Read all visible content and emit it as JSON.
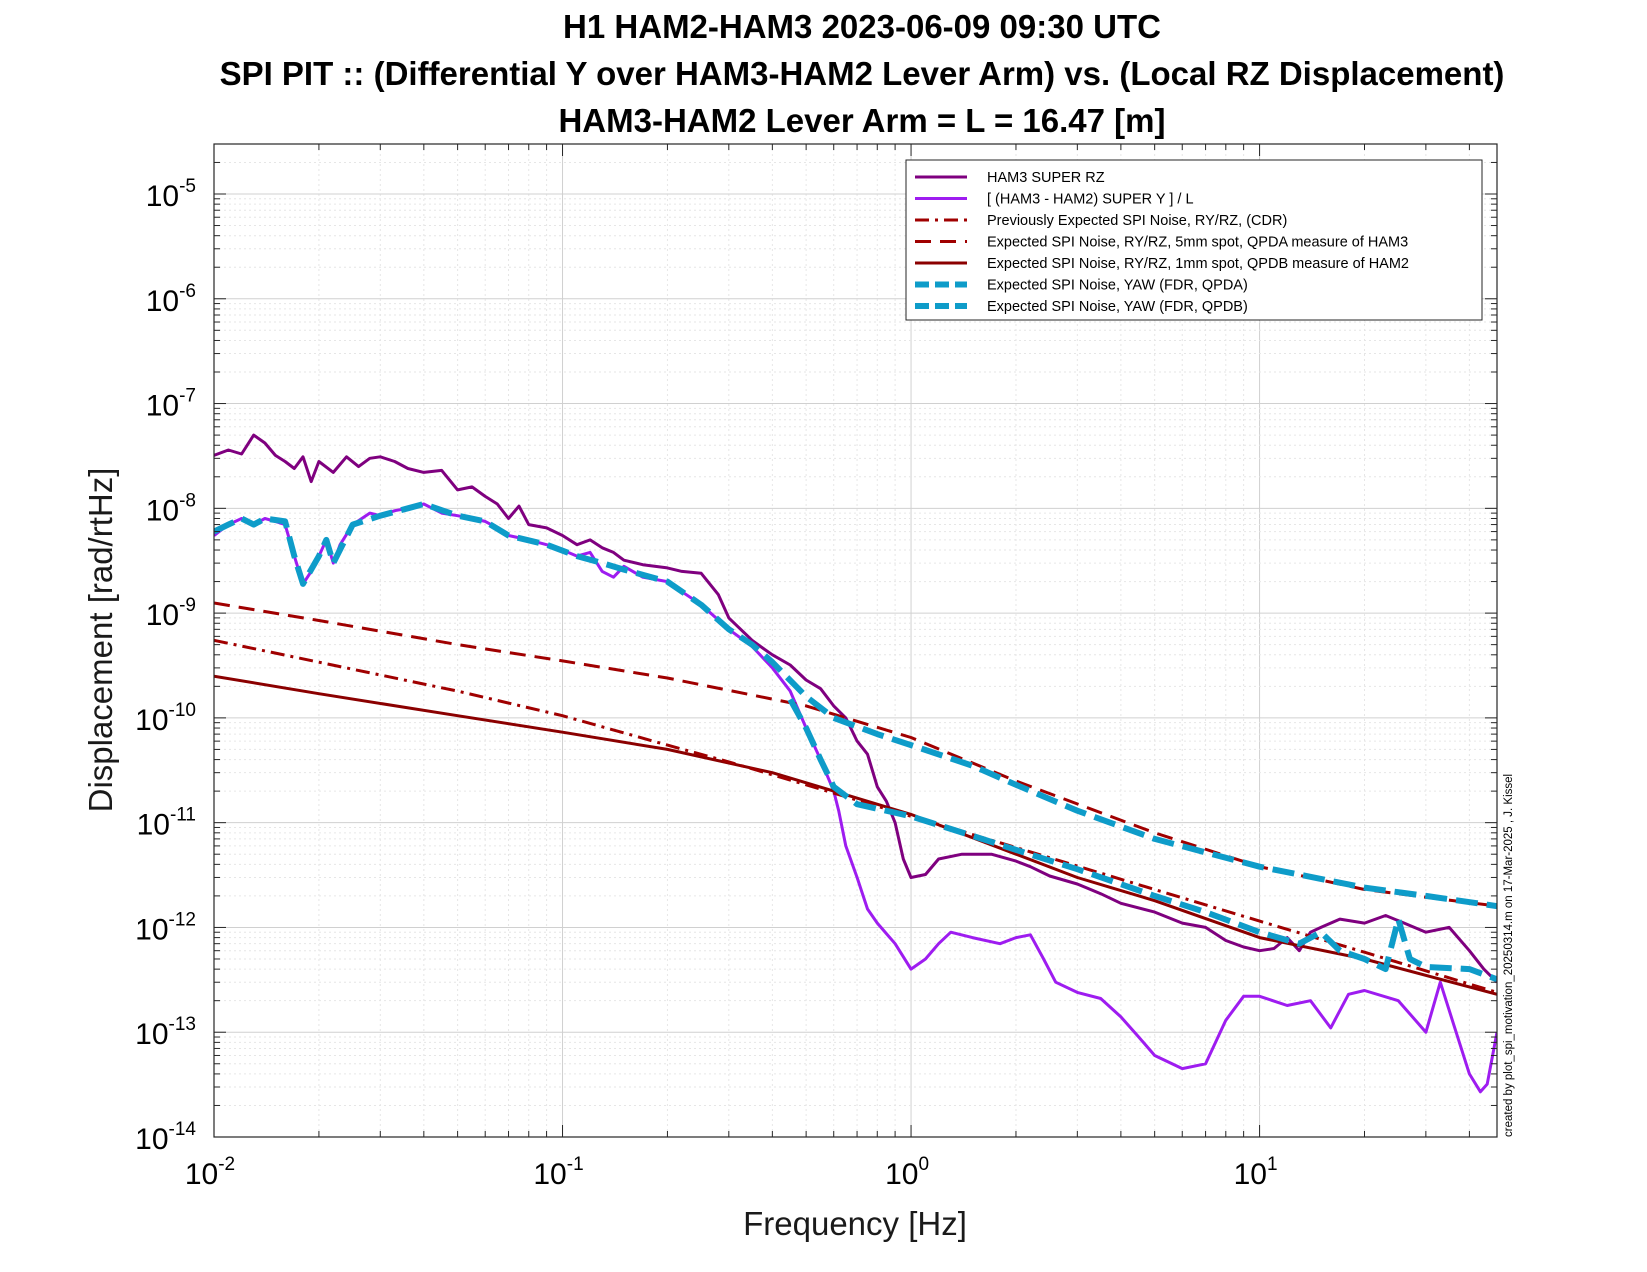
{
  "chart_data": {
    "type": "line",
    "title_lines": [
      "H1 HAM2-HAM3 2023-06-09 09:30 UTC",
      "SPI PIT :: (Differential Y over HAM3-HAM2 Lever Arm) vs. (Local RZ Displacement)",
      "HAM3-HAM2 Lever Arm = L = 16.47 [m]"
    ],
    "xlabel": "Frequency [Hz]",
    "ylabel": "Displacement [rad/rtHz]",
    "xscale": "log",
    "yscale": "log",
    "xlim": [
      0.01,
      48
    ],
    "ylim": [
      1e-14,
      3e-05
    ],
    "x_ticks": [
      {
        "value": 0.01,
        "base": "10",
        "exp": "-2"
      },
      {
        "value": 0.1,
        "base": "10",
        "exp": "-1"
      },
      {
        "value": 1,
        "base": "10",
        "exp": "0"
      },
      {
        "value": 10,
        "base": "10",
        "exp": "1"
      }
    ],
    "y_ticks": [
      {
        "value": 1e-14,
        "base": "10",
        "exp": "-14"
      },
      {
        "value": 1e-13,
        "base": "10",
        "exp": "-13"
      },
      {
        "value": 1e-12,
        "base": "10",
        "exp": "-12"
      },
      {
        "value": 1e-11,
        "base": "10",
        "exp": "-11"
      },
      {
        "value": 1e-10,
        "base": "10",
        "exp": "-10"
      },
      {
        "value": 1e-09,
        "base": "10",
        "exp": "-9"
      },
      {
        "value": 1e-08,
        "base": "10",
        "exp": "-8"
      },
      {
        "value": 1e-07,
        "base": "10",
        "exp": "-7"
      },
      {
        "value": 1e-06,
        "base": "10",
        "exp": "-6"
      },
      {
        "value": 1e-05,
        "base": "10",
        "exp": "-5"
      }
    ],
    "grid": true,
    "minor_grid": true,
    "legend_position": "top-right",
    "annotation": "created by plot_spi_motivation_20250314.m on 17-Mar-2025 , J. Kissel",
    "series": [
      {
        "name": "HAM3 SUPER RZ",
        "color": "#7f007f",
        "style": "solid",
        "width": 3,
        "points": [
          [
            0.01,
            3.2e-08
          ],
          [
            0.011,
            3.6e-08
          ],
          [
            0.012,
            3.3e-08
          ],
          [
            0.013,
            5e-08
          ],
          [
            0.014,
            4.2e-08
          ],
          [
            0.015,
            3.2e-08
          ],
          [
            0.016,
            2.8e-08
          ],
          [
            0.017,
            2.4e-08
          ],
          [
            0.018,
            3.1e-08
          ],
          [
            0.019,
            1.8e-08
          ],
          [
            0.02,
            2.8e-08
          ],
          [
            0.022,
            2.2e-08
          ],
          [
            0.024,
            3.1e-08
          ],
          [
            0.026,
            2.5e-08
          ],
          [
            0.028,
            3e-08
          ],
          [
            0.03,
            3.1e-08
          ],
          [
            0.033,
            2.8e-08
          ],
          [
            0.036,
            2.4e-08
          ],
          [
            0.04,
            2.2e-08
          ],
          [
            0.045,
            2.3e-08
          ],
          [
            0.05,
            1.5e-08
          ],
          [
            0.055,
            1.6e-08
          ],
          [
            0.06,
            1.3e-08
          ],
          [
            0.065,
            1.1e-08
          ],
          [
            0.07,
            8e-09
          ],
          [
            0.075,
            1.05e-08
          ],
          [
            0.08,
            7e-09
          ],
          [
            0.09,
            6.5e-09
          ],
          [
            0.1,
            5.5e-09
          ],
          [
            0.11,
            4.5e-09
          ],
          [
            0.12,
            5e-09
          ],
          [
            0.13,
            4.2e-09
          ],
          [
            0.14,
            3.8e-09
          ],
          [
            0.15,
            3.2e-09
          ],
          [
            0.17,
            2.9e-09
          ],
          [
            0.2,
            2.7e-09
          ],
          [
            0.22,
            2.5e-09
          ],
          [
            0.25,
            2.4e-09
          ],
          [
            0.28,
            1.5e-09
          ],
          [
            0.3,
            9e-10
          ],
          [
            0.35,
            5.5e-10
          ],
          [
            0.38,
            4.5e-10
          ],
          [
            0.4,
            4e-10
          ],
          [
            0.45,
            3.2e-10
          ],
          [
            0.5,
            2.3e-10
          ],
          [
            0.55,
            1.9e-10
          ],
          [
            0.6,
            1.3e-10
          ],
          [
            0.65,
            1e-10
          ],
          [
            0.7,
            6e-11
          ],
          [
            0.75,
            4.5e-11
          ],
          [
            0.8,
            2.2e-11
          ],
          [
            0.85,
            1.6e-11
          ],
          [
            0.9,
            1e-11
          ],
          [
            0.95,
            4.5e-12
          ],
          [
            1,
            3e-12
          ],
          [
            1.1,
            3.2e-12
          ],
          [
            1.2,
            4.5e-12
          ],
          [
            1.4,
            5e-12
          ],
          [
            1.7,
            5e-12
          ],
          [
            2,
            4.3e-12
          ],
          [
            2.2,
            3.8e-12
          ],
          [
            2.5,
            3.1e-12
          ],
          [
            3,
            2.6e-12
          ],
          [
            3.5,
            2.1e-12
          ],
          [
            4,
            1.7e-12
          ],
          [
            5,
            1.4e-12
          ],
          [
            6,
            1.1e-12
          ],
          [
            7,
            1e-12
          ],
          [
            8,
            7.5e-13
          ],
          [
            9,
            6.5e-13
          ],
          [
            10,
            6e-13
          ],
          [
            11,
            6.3e-13
          ],
          [
            12,
            8e-13
          ],
          [
            13,
            6e-13
          ],
          [
            14,
            9e-13
          ],
          [
            15,
            1e-12
          ],
          [
            17,
            1.2e-12
          ],
          [
            20,
            1.1e-12
          ],
          [
            23,
            1.3e-12
          ],
          [
            26,
            1.1e-12
          ],
          [
            30,
            9e-13
          ],
          [
            35,
            1e-12
          ],
          [
            40,
            6e-13
          ],
          [
            44,
            4e-13
          ],
          [
            48,
            3e-13
          ]
        ]
      },
      {
        "name": "[ (HAM3 - HAM2) SUPER Y ] / L",
        "color": "#9e1cf0",
        "style": "solid",
        "width": 3,
        "points": [
          [
            0.01,
            5.5e-09
          ],
          [
            0.011,
            7e-09
          ],
          [
            0.012,
            8e-09
          ],
          [
            0.013,
            7e-09
          ],
          [
            0.014,
            8e-09
          ],
          [
            0.015,
            7.5e-09
          ],
          [
            0.016,
            7e-09
          ],
          [
            0.017,
            3.5e-09
          ],
          [
            0.018,
            1.9e-09
          ],
          [
            0.019,
            2.5e-09
          ],
          [
            0.02,
            3.5e-09
          ],
          [
            0.021,
            5e-09
          ],
          [
            0.022,
            3e-09
          ],
          [
            0.023,
            4.5e-09
          ],
          [
            0.025,
            7e-09
          ],
          [
            0.028,
            9e-09
          ],
          [
            0.03,
            8.5e-09
          ],
          [
            0.033,
            9.5e-09
          ],
          [
            0.036,
            1e-08
          ],
          [
            0.04,
            1.1e-08
          ],
          [
            0.045,
            9e-09
          ],
          [
            0.05,
            8.5e-09
          ],
          [
            0.055,
            8e-09
          ],
          [
            0.06,
            7.5e-09
          ],
          [
            0.065,
            6.5e-09
          ],
          [
            0.07,
            5.5e-09
          ],
          [
            0.08,
            5e-09
          ],
          [
            0.09,
            4.5e-09
          ],
          [
            0.1,
            4e-09
          ],
          [
            0.11,
            3.5e-09
          ],
          [
            0.12,
            3.8e-09
          ],
          [
            0.13,
            2.5e-09
          ],
          [
            0.14,
            2.2e-09
          ],
          [
            0.15,
            2.8e-09
          ],
          [
            0.17,
            2.2e-09
          ],
          [
            0.2,
            2e-09
          ],
          [
            0.22,
            1.6e-09
          ],
          [
            0.25,
            1.2e-09
          ],
          [
            0.3,
            7e-10
          ],
          [
            0.35,
            4.8e-10
          ],
          [
            0.4,
            3e-10
          ],
          [
            0.45,
            1.8e-10
          ],
          [
            0.5,
            8e-11
          ],
          [
            0.55,
            4e-11
          ],
          [
            0.6,
            2e-11
          ],
          [
            0.62,
            1.3e-11
          ],
          [
            0.65,
            6e-12
          ],
          [
            0.7,
            3e-12
          ],
          [
            0.75,
            1.5e-12
          ],
          [
            0.8,
            1.1e-12
          ],
          [
            0.9,
            7e-13
          ],
          [
            1,
            4e-13
          ],
          [
            1.1,
            5e-13
          ],
          [
            1.2,
            7e-13
          ],
          [
            1.3,
            9e-13
          ],
          [
            1.5,
            8e-13
          ],
          [
            1.8,
            7e-13
          ],
          [
            2,
            8e-13
          ],
          [
            2.2,
            8.5e-13
          ],
          [
            2.4,
            5e-13
          ],
          [
            2.6,
            3e-13
          ],
          [
            3,
            2.4e-13
          ],
          [
            3.5,
            2.1e-13
          ],
          [
            4,
            1.4e-13
          ],
          [
            4.5,
            9e-14
          ],
          [
            5,
            6e-14
          ],
          [
            6,
            4.5e-14
          ],
          [
            7,
            5e-14
          ],
          [
            8,
            1.3e-13
          ],
          [
            9,
            2.2e-13
          ],
          [
            10,
            2.2e-13
          ],
          [
            12,
            1.8e-13
          ],
          [
            14,
            2e-13
          ],
          [
            16,
            1.1e-13
          ],
          [
            18,
            2.3e-13
          ],
          [
            20,
            2.5e-13
          ],
          [
            25,
            2e-13
          ],
          [
            30,
            1e-13
          ],
          [
            33,
            3e-13
          ],
          [
            36,
            1.2e-13
          ],
          [
            40,
            4e-14
          ],
          [
            43,
            2.7e-14
          ],
          [
            45,
            3.2e-14
          ],
          [
            48,
            1e-13
          ]
        ]
      },
      {
        "name": "Previously Expected SPI Noise, RY/RZ, (CDR)",
        "color": "#a00000",
        "style": "dashdot",
        "width": 3,
        "points": [
          [
            0.01,
            5.5e-10
          ],
          [
            0.02,
            3.4e-10
          ],
          [
            0.05,
            1.8e-10
          ],
          [
            0.1,
            1.05e-10
          ],
          [
            0.2,
            5.5e-11
          ],
          [
            0.3,
            3.8e-11
          ],
          [
            0.5,
            2.3e-11
          ],
          [
            1,
            1.15e-11
          ],
          [
            2,
            5.8e-12
          ],
          [
            5,
            2.3e-12
          ],
          [
            10,
            1.15e-12
          ],
          [
            20,
            5.8e-13
          ],
          [
            48,
            2.4e-13
          ]
        ]
      },
      {
        "name": "Expected SPI Noise, RY/RZ, 5mm spot, QPDA measure of HAM3",
        "color": "#a00000",
        "style": "dashed",
        "width": 3,
        "points": [
          [
            0.01,
            1.25e-09
          ],
          [
            0.02,
            8.5e-10
          ],
          [
            0.05,
            5e-10
          ],
          [
            0.1,
            3.5e-10
          ],
          [
            0.2,
            2.4e-10
          ],
          [
            0.5,
            1.3e-10
          ],
          [
            1,
            6.5e-11
          ],
          [
            2,
            2.5e-11
          ],
          [
            5,
            8e-12
          ],
          [
            10,
            3.8e-12
          ],
          [
            20,
            2.3e-12
          ],
          [
            48,
            1.6e-12
          ]
        ]
      },
      {
        "name": "Expected SPI Noise, RY/RZ, 1mm spot, QPDB measure of HAM2",
        "color": "#8b0000",
        "style": "solid",
        "width": 3,
        "points": [
          [
            0.01,
            2.5e-10
          ],
          [
            0.02,
            1.7e-10
          ],
          [
            0.05,
            1.05e-10
          ],
          [
            0.1,
            7.3e-11
          ],
          [
            0.2,
            5e-11
          ],
          [
            0.4,
            3e-11
          ],
          [
            0.6,
            2e-11
          ],
          [
            1,
            1.2e-11
          ],
          [
            2,
            5e-12
          ],
          [
            3,
            3e-12
          ],
          [
            5,
            1.8e-12
          ],
          [
            10,
            8e-13
          ],
          [
            20,
            5e-13
          ],
          [
            48,
            2.3e-13
          ]
        ]
      },
      {
        "name": "Expected SPI Noise, YAW (FDR, QPDA)",
        "color": "#0e9cc9",
        "style": "dashed-thick",
        "width": 6,
        "points": [
          [
            0.01,
            6e-09
          ],
          [
            0.011,
            7e-09
          ],
          [
            0.012,
            8e-09
          ],
          [
            0.013,
            7e-09
          ],
          [
            0.014,
            8e-09
          ],
          [
            0.016,
            7.5e-09
          ],
          [
            0.017,
            3.5e-09
          ],
          [
            0.018,
            1.9e-09
          ],
          [
            0.02,
            3.5e-09
          ],
          [
            0.021,
            5e-09
          ],
          [
            0.022,
            3e-09
          ],
          [
            0.025,
            7e-09
          ],
          [
            0.03,
            8.5e-09
          ],
          [
            0.036,
            1e-08
          ],
          [
            0.04,
            1.1e-08
          ],
          [
            0.05,
            8.5e-09
          ],
          [
            0.06,
            7.5e-09
          ],
          [
            0.07,
            5.5e-09
          ],
          [
            0.09,
            4.5e-09
          ],
          [
            0.11,
            3.5e-09
          ],
          [
            0.13,
            3e-09
          ],
          [
            0.15,
            2.6e-09
          ],
          [
            0.2,
            2e-09
          ],
          [
            0.25,
            1.2e-09
          ],
          [
            0.3,
            7e-10
          ],
          [
            0.35,
            5e-10
          ],
          [
            0.4,
            3.4e-10
          ],
          [
            0.5,
            1.6e-10
          ],
          [
            0.6,
            1e-10
          ],
          [
            0.8,
            7e-11
          ],
          [
            1,
            5.5e-11
          ],
          [
            1.5,
            3.5e-11
          ],
          [
            2,
            2.3e-11
          ],
          [
            3,
            1.3e-11
          ],
          [
            5,
            7e-12
          ],
          [
            10,
            3.8e-12
          ],
          [
            20,
            2.4e-12
          ],
          [
            30,
            2e-12
          ],
          [
            48,
            1.6e-12
          ]
        ]
      },
      {
        "name": "Expected SPI Noise, YAW (FDR, QPDB)",
        "color": "#0e9cc9",
        "style": "dashed-thick",
        "width": 6,
        "points": [
          [
            0.45,
            1.5e-10
          ],
          [
            0.5,
            8e-11
          ],
          [
            0.55,
            4e-11
          ],
          [
            0.6,
            2.2e-11
          ],
          [
            0.65,
            1.8e-11
          ],
          [
            0.7,
            1.5e-11
          ],
          [
            1,
            1.15e-11
          ],
          [
            1.5,
            7.5e-12
          ],
          [
            2,
            5.5e-12
          ],
          [
            3,
            3.6e-12
          ],
          [
            5,
            2e-12
          ],
          [
            7,
            1.4e-12
          ],
          [
            10,
            9e-13
          ],
          [
            13,
            7e-13
          ],
          [
            15,
            9e-13
          ],
          [
            17,
            6e-13
          ],
          [
            20,
            5e-13
          ],
          [
            23,
            4e-13
          ],
          [
            25,
            1.2e-12
          ],
          [
            27,
            5e-13
          ],
          [
            30,
            4.2e-13
          ],
          [
            40,
            4e-13
          ],
          [
            48,
            3.2e-13
          ]
        ]
      }
    ]
  }
}
